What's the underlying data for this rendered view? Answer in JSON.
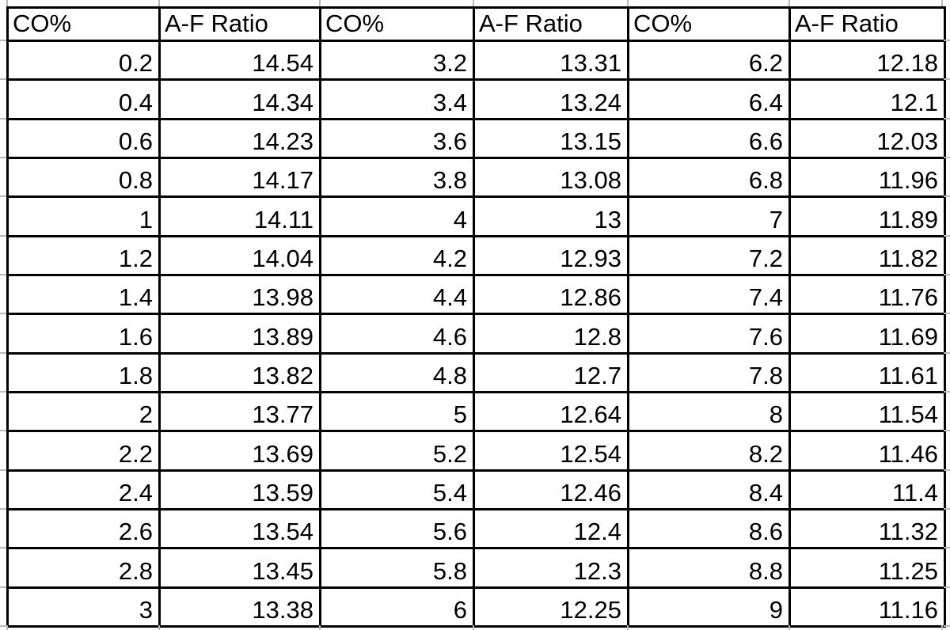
{
  "colors": {
    "background": "#ffffff",
    "text": "#000000",
    "table_border": "#000000",
    "faint_gridline": "#b9b9b9"
  },
  "chart_data": {
    "type": "table",
    "columns": [
      "CO%",
      "A-F Ratio",
      "CO%",
      "A-F Ratio",
      "CO%",
      "A-F Ratio"
    ],
    "rows": [
      [
        "0.2",
        "14.54",
        "3.2",
        "13.31",
        "6.2",
        "12.18"
      ],
      [
        "0.4",
        "14.34",
        "3.4",
        "13.24",
        "6.4",
        "12.1"
      ],
      [
        "0.6",
        "14.23",
        "3.6",
        "13.15",
        "6.6",
        "12.03"
      ],
      [
        "0.8",
        "14.17",
        "3.8",
        "13.08",
        "6.8",
        "11.96"
      ],
      [
        "1",
        "14.11",
        "4",
        "13",
        "7",
        "11.89"
      ],
      [
        "1.2",
        "14.04",
        "4.2",
        "12.93",
        "7.2",
        "11.82"
      ],
      [
        "1.4",
        "13.98",
        "4.4",
        "12.86",
        "7.4",
        "11.76"
      ],
      [
        "1.6",
        "13.89",
        "4.6",
        "12.8",
        "7.6",
        "11.69"
      ],
      [
        "1.8",
        "13.82",
        "4.8",
        "12.7",
        "7.8",
        "11.61"
      ],
      [
        "2",
        "13.77",
        "5",
        "12.64",
        "8",
        "11.54"
      ],
      [
        "2.2",
        "13.69",
        "5.2",
        "12.54",
        "8.2",
        "11.46"
      ],
      [
        "2.4",
        "13.59",
        "5.4",
        "12.46",
        "8.4",
        "11.4"
      ],
      [
        "2.6",
        "13.54",
        "5.6",
        "12.4",
        "8.6",
        "11.32"
      ],
      [
        "2.8",
        "13.45",
        "5.8",
        "12.3",
        "8.8",
        "11.25"
      ],
      [
        "3",
        "13.38",
        "6",
        "12.25",
        "9",
        "11.16"
      ]
    ],
    "series": [
      {
        "name": "A-F Ratio",
        "x": [
          0.2,
          0.4,
          0.6,
          0.8,
          1,
          1.2,
          1.4,
          1.6,
          1.8,
          2,
          2.2,
          2.4,
          2.6,
          2.8,
          3,
          3.2,
          3.4,
          3.6,
          3.8,
          4,
          4.2,
          4.4,
          4.6,
          4.8,
          5,
          5.2,
          5.4,
          5.6,
          5.8,
          6,
          6.2,
          6.4,
          6.6,
          6.8,
          7,
          7.2,
          7.4,
          7.6,
          7.8,
          8,
          8.2,
          8.4,
          8.6,
          8.8,
          9
        ],
        "y": [
          14.54,
          14.34,
          14.23,
          14.17,
          14.11,
          14.04,
          13.98,
          13.89,
          13.82,
          13.77,
          13.69,
          13.59,
          13.54,
          13.45,
          13.38,
          13.31,
          13.24,
          13.15,
          13.08,
          13,
          12.93,
          12.86,
          12.8,
          12.7,
          12.64,
          12.54,
          12.46,
          12.4,
          12.3,
          12.25,
          12.18,
          12.1,
          12.03,
          11.96,
          11.89,
          11.82,
          11.76,
          11.69,
          11.61,
          11.54,
          11.46,
          11.4,
          11.32,
          11.25,
          11.16
        ]
      }
    ],
    "xlabel": "CO%",
    "ylabel": "A-F Ratio"
  }
}
